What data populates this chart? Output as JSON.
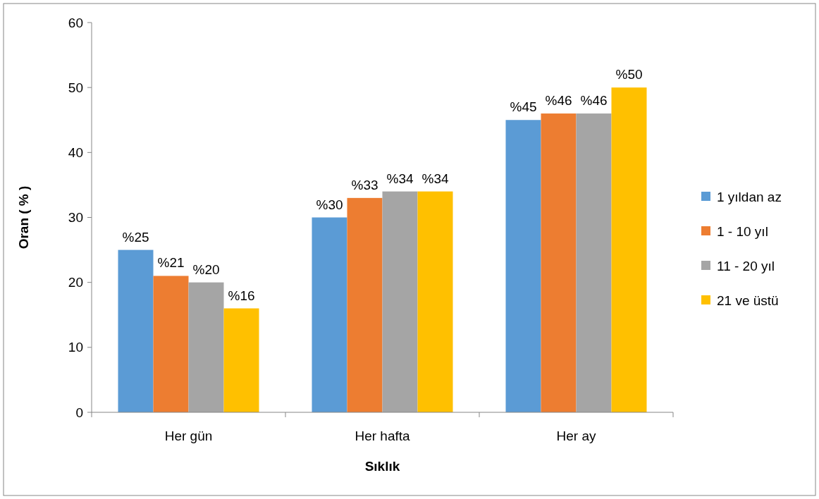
{
  "chart_data": {
    "type": "bar",
    "xlabel": "Sıklık",
    "ylabel": "Oran ( % )",
    "categories": [
      "Her gün",
      "Her hafta",
      "Her ay"
    ],
    "series": [
      {
        "name": "1 yıldan az",
        "color": "#5b9bd5",
        "values": [
          25,
          30,
          45
        ],
        "value_labels": [
          "%25",
          "%30",
          "%45"
        ]
      },
      {
        "name": "1 - 10 yıl",
        "color": "#ed7d31",
        "values": [
          21,
          33,
          46
        ],
        "value_labels": [
          "%21",
          "%33",
          "%46"
        ]
      },
      {
        "name": "11 - 20 yıl",
        "color": "#a5a5a5",
        "values": [
          20,
          34,
          46
        ],
        "value_labels": [
          "%20",
          "%34",
          "%46"
        ]
      },
      {
        "name": "21 ve üstü",
        "color": "#ffc000",
        "values": [
          16,
          34,
          50
        ],
        "value_labels": [
          "%16",
          "%34",
          "%50"
        ]
      }
    ],
    "ylim": [
      0,
      60
    ],
    "yticks": [
      0,
      10,
      20,
      30,
      40,
      50,
      60
    ],
    "grid": false,
    "legend": "right"
  }
}
